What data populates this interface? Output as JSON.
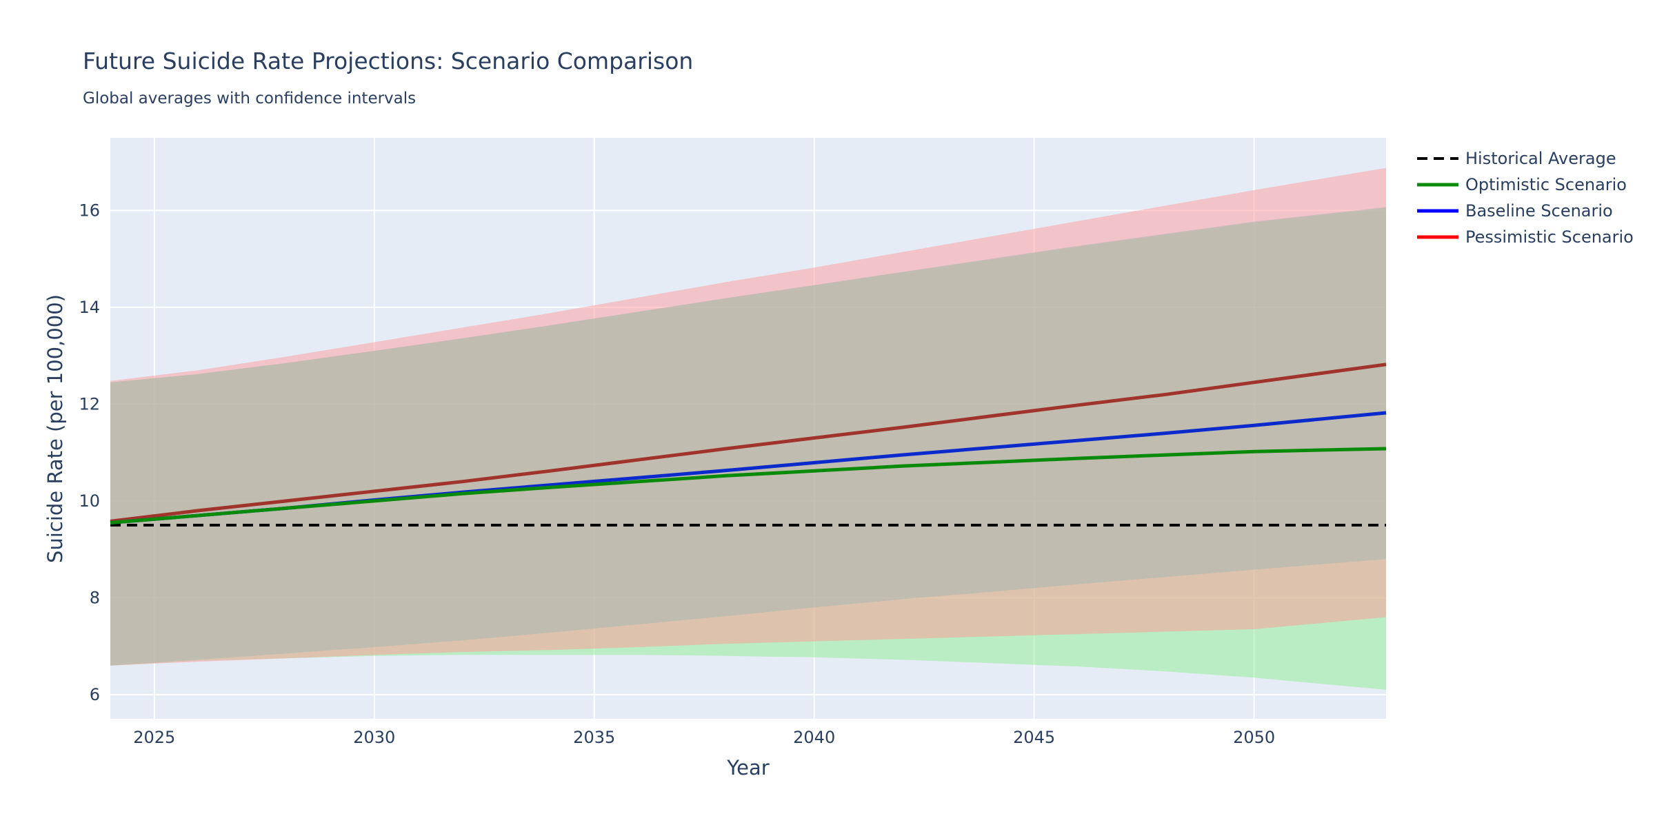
{
  "chart_data": {
    "type": "line",
    "title": "Future Suicide Rate Projections: Scenario Comparison",
    "subtitle": "Global averages with confidence intervals",
    "xlabel": "Year",
    "ylabel": "Suicide Rate (per 100,000)",
    "xlim": [
      2024,
      2053
    ],
    "ylim": [
      5.5,
      17.5
    ],
    "xticks": [
      2025,
      2030,
      2035,
      2040,
      2045,
      2050
    ],
    "yticks": [
      6,
      8,
      10,
      12,
      14,
      16
    ],
    "grid": true,
    "legend_position": "top-right, outside plot",
    "plot_background": "#e5ecf6",
    "historical_average": {
      "name": "Historical Average",
      "value": 9.5,
      "color": "#000000",
      "dash": "dash"
    },
    "series": [
      {
        "name": "Optimistic Scenario",
        "color": "#008000",
        "line_color_rendered": "#0a8a0a",
        "band_color": "#90ee90",
        "x": [
          2024,
          2026,
          2028,
          2030,
          2032,
          2034,
          2036,
          2038,
          2040,
          2042,
          2044,
          2046,
          2048,
          2050,
          2053
        ],
        "y": [
          9.55,
          9.7,
          9.85,
          10.0,
          10.15,
          10.28,
          10.4,
          10.52,
          10.62,
          10.72,
          10.8,
          10.88,
          10.95,
          11.02,
          11.08
        ],
        "upper": [
          12.45,
          12.62,
          12.85,
          13.1,
          13.35,
          13.62,
          13.9,
          14.18,
          14.45,
          14.72,
          14.98,
          15.25,
          15.5,
          15.75,
          16.05
        ],
        "lower": [
          6.6,
          6.7,
          6.75,
          6.8,
          6.82,
          6.82,
          6.82,
          6.8,
          6.77,
          6.72,
          6.65,
          6.58,
          6.48,
          6.35,
          6.1
        ]
      },
      {
        "name": "Baseline Scenario",
        "color": "#0000ff",
        "line_color_rendered": "#0a2acc",
        "band_color": "#48d1cc",
        "x": [
          2024,
          2026,
          2028,
          2030,
          2032,
          2034,
          2036,
          2038,
          2040,
          2042,
          2044,
          2046,
          2048,
          2050,
          2053
        ],
        "y": [
          9.55,
          9.7,
          9.85,
          10.02,
          10.18,
          10.33,
          10.48,
          10.63,
          10.79,
          10.95,
          11.1,
          11.25,
          11.4,
          11.56,
          11.82
        ],
        "upper": [
          12.45,
          12.62,
          12.85,
          13.1,
          13.36,
          13.63,
          13.91,
          14.19,
          14.46,
          14.73,
          15.0,
          15.27,
          15.52,
          15.77,
          16.07
        ],
        "lower": [
          6.6,
          6.72,
          6.85,
          6.98,
          7.12,
          7.28,
          7.45,
          7.62,
          7.8,
          7.97,
          8.12,
          8.28,
          8.43,
          8.58,
          8.8
        ]
      },
      {
        "name": "Pessimistic Scenario",
        "color": "#ff0000",
        "line_color_rendered": "#a0342c",
        "band_color": "#ff9999",
        "x": [
          2024,
          2026,
          2028,
          2030,
          2032,
          2034,
          2036,
          2038,
          2040,
          2042,
          2044,
          2046,
          2048,
          2050,
          2053
        ],
        "y": [
          9.58,
          9.8,
          10.0,
          10.2,
          10.4,
          10.62,
          10.85,
          11.08,
          11.3,
          11.52,
          11.75,
          11.98,
          12.2,
          12.45,
          12.82
        ],
        "upper": [
          12.48,
          12.7,
          12.98,
          13.28,
          13.58,
          13.88,
          14.2,
          14.52,
          14.82,
          15.14,
          15.46,
          15.78,
          16.1,
          16.42,
          16.88
        ],
        "lower": [
          6.6,
          6.68,
          6.75,
          6.82,
          6.88,
          6.92,
          6.98,
          7.05,
          7.1,
          7.15,
          7.2,
          7.25,
          7.3,
          7.35,
          7.6
        ]
      }
    ]
  }
}
